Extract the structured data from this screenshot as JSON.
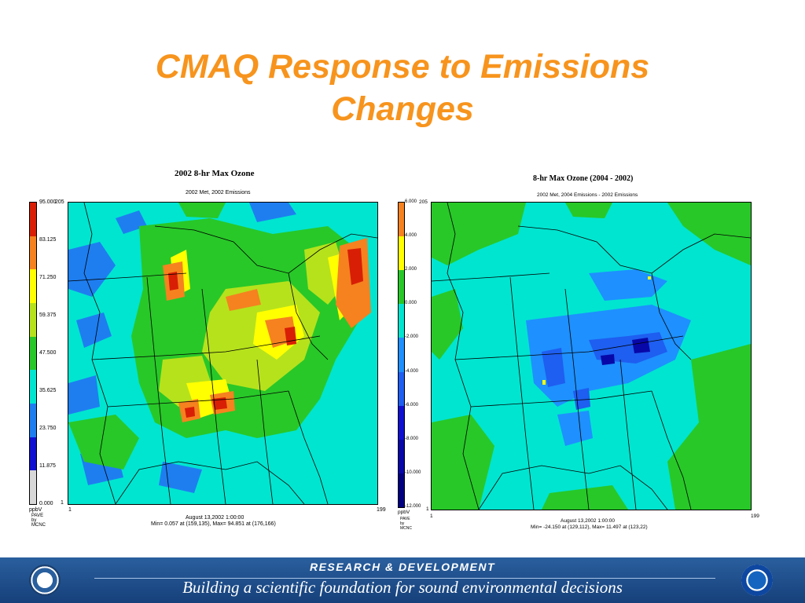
{
  "slide": {
    "title_line1": "CMAQ Response to Emissions",
    "title_line2": "Changes"
  },
  "left_map": {
    "title": "2002 8-hr Max Ozone",
    "subtitle": "2002 Met, 2002 Emissions",
    "colorbar_ticks": [
      "95.000",
      "83.125",
      "71.250",
      "59.375",
      "47.500",
      "35.625",
      "23.750",
      "11.875",
      "0.000"
    ],
    "colorbar_colors": [
      "#d81e05",
      "#f5821f",
      "#ffff00",
      "#b6e21c",
      "#28c828",
      "#00e5d0",
      "#1e7ef0",
      "#1010d0",
      "#d8d8d8"
    ],
    "unit": "ppbV",
    "credit": "PAVE by MCNC",
    "axis_x_min": "1",
    "axis_x_max": "199",
    "axis_y_min": "1",
    "axis_y_max": "205",
    "date": "August 13,2002 1:00:00",
    "minmax": "Min=   0.057 at (159,135), Max=  94.851 at (176,166)"
  },
  "right_map": {
    "title": "8-hr Max Ozone (2004 - 2002)",
    "subtitle": "2002 Met, 2004 Emissions - 2002 Emissions",
    "colorbar_ticks": [
      "6.000",
      "4.000",
      "2.000",
      "0.000",
      "-2.000",
      "-4.000",
      "-6.000",
      "-8.000",
      "-10.000",
      "-12.000"
    ],
    "colorbar_colors": [
      "#f5821f",
      "#ffff00",
      "#28c828",
      "#00e5d0",
      "#1e90ff",
      "#1e5ef0",
      "#1010d0",
      "#0808a8",
      "#000080"
    ],
    "unit": "ppbV",
    "credit": "PAVE by MCNC",
    "axis_x_min": "1",
    "axis_x_max": "199",
    "axis_y_min": "1",
    "axis_y_max": "205",
    "date": "August 13,2002 1:00:00",
    "minmax": "Min= -24.150 at (129,112), Max=  11.497 at (123,22)"
  },
  "footer": {
    "line1": "RESEARCH & DEVELOPMENT",
    "line2": "Building a scientific foundation for sound environmental decisions"
  },
  "colors": {
    "title": "#f7941d",
    "footer_bg": "#1f4f8c",
    "left_base": "#00e5d0",
    "right_base": "#00e5d0"
  },
  "icons": {
    "left_logo": "epa-seal-icon",
    "right_logo": "noaa-logo-icon"
  }
}
